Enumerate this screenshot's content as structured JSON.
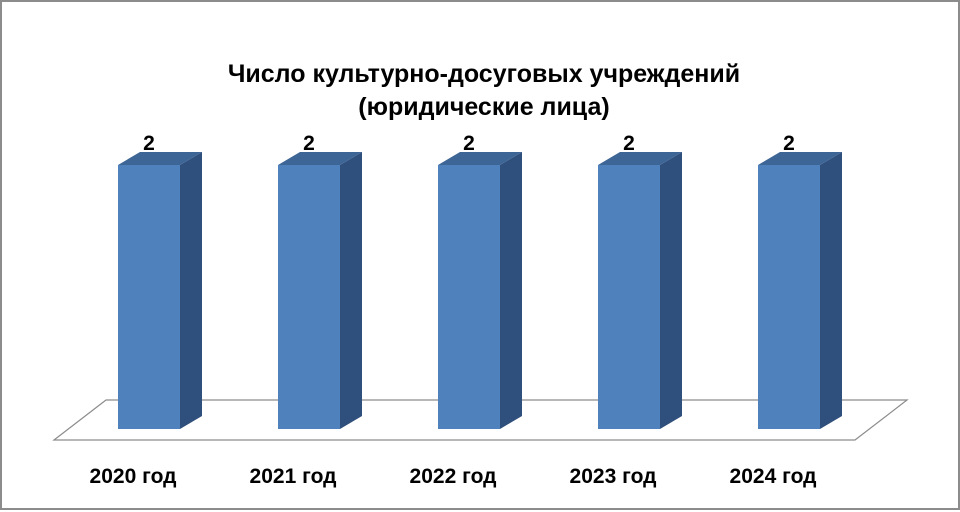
{
  "chart_data": {
    "type": "bar",
    "title_lines": [
      "Число культурно-досуговых учреждений",
      "(юридические лица)"
    ],
    "categories": [
      "2020 год",
      "2021 год",
      "2022 год",
      "2023 год",
      "2024 год"
    ],
    "values": [
      2,
      2,
      2,
      2,
      2
    ],
    "data_labels": [
      "2",
      "2",
      "2",
      "2",
      "2"
    ],
    "xlabel": "",
    "ylabel": "",
    "ylim": [
      0,
      2
    ],
    "grid": false,
    "legend": "none",
    "style": "3d-column",
    "colors": {
      "bar_front": "#4f81bd",
      "bar_side": "#2f4f7d",
      "bar_top": "#3d6596",
      "floor": "#ffffff",
      "floor_stroke": "#8c8c8c",
      "frame": "#8c8c8c"
    }
  }
}
